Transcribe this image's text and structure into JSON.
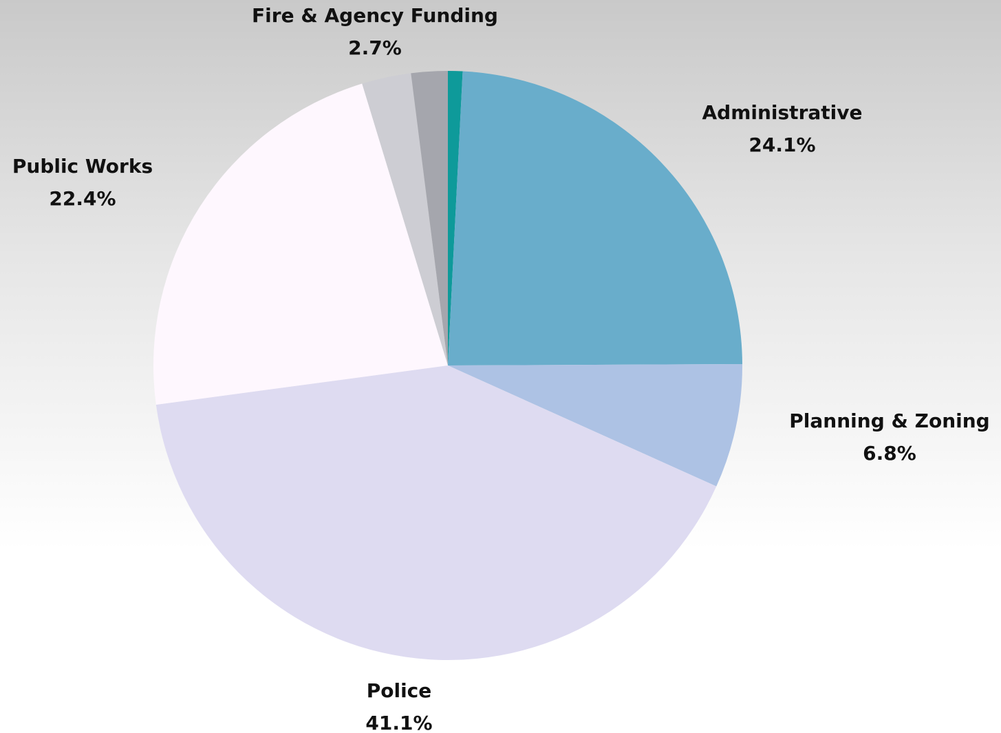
{
  "chart_data": {
    "type": "pie",
    "start_angle_deg": 0,
    "direction": "clockwise",
    "slices": [
      {
        "key": "unlabeled_teal",
        "label": "",
        "pct_label": "",
        "value": 0.8,
        "color": "#0e9a9a"
      },
      {
        "key": "administrative",
        "label": "Administrative",
        "pct_label": "24.1%",
        "value": 24.1,
        "color": "#69adcb"
      },
      {
        "key": "planning_zoning",
        "label": "Planning & Zoning",
        "pct_label": "6.8%",
        "value": 6.8,
        "color": "#adc2e4"
      },
      {
        "key": "police",
        "label": "Police",
        "pct_label": "41.1%",
        "value": 41.1,
        "color": "#dedbf1"
      },
      {
        "key": "public_works",
        "label": "Public Works",
        "pct_label": "22.4%",
        "value": 22.4,
        "color": "#fef7fe"
      },
      {
        "key": "fire_agency_funding",
        "label": "Fire & Agency Funding",
        "pct_label": "2.7%",
        "value": 2.7,
        "color": "#cdcdd3"
      },
      {
        "key": "unlabeled_gray",
        "label": "",
        "pct_label": "",
        "value": 2.0,
        "color": "#a5a6ad"
      }
    ]
  }
}
